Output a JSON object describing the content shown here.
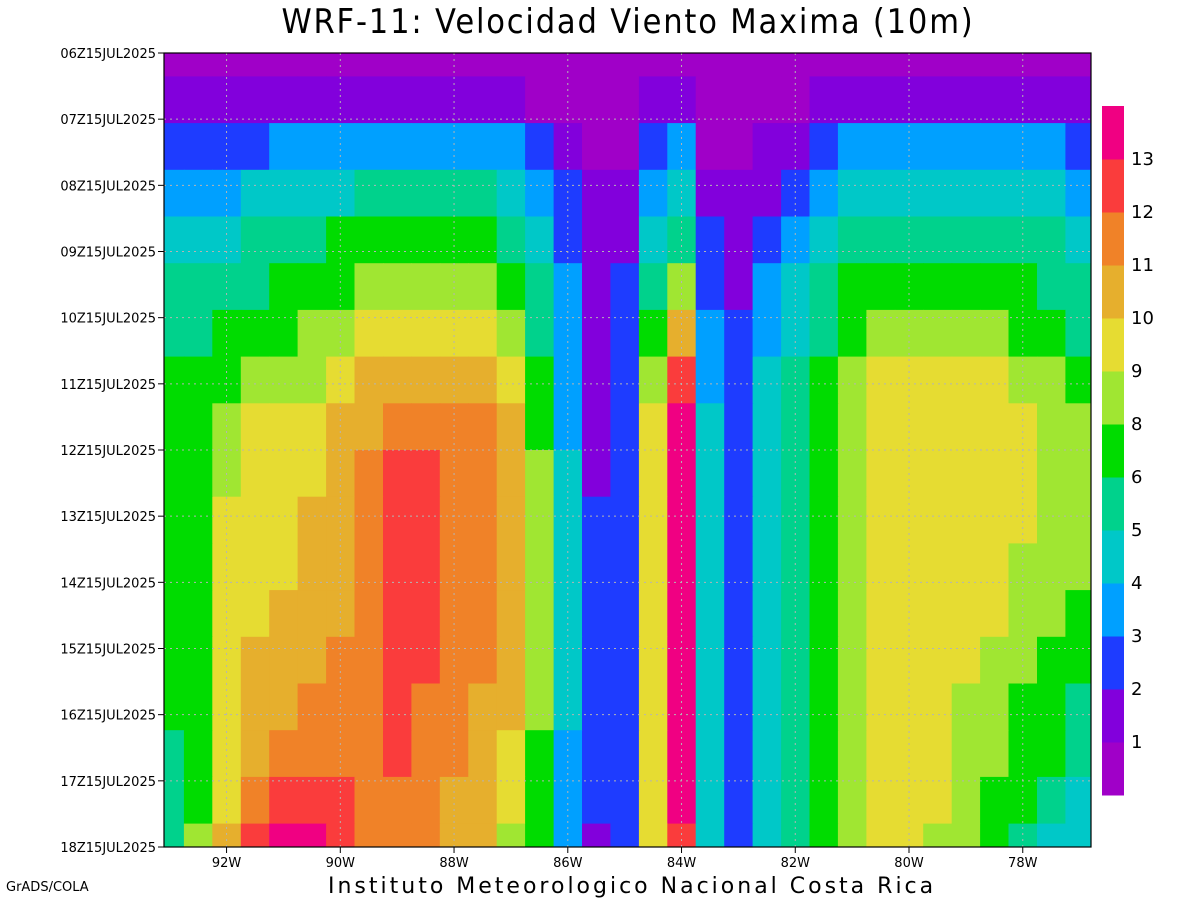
{
  "title": "WRF-11: Velocidad  Viento Maxima (10m)",
  "footer_credit": "Instituto Meteorologico Nacional Costa Rica",
  "software_label": "GrADS/COLA",
  "chart_data": {
    "type": "heatmap",
    "title": "WRF-11: Velocidad  Viento Maxima (10m)",
    "xlabel": "",
    "ylabel": "",
    "x_ticks": [
      "92W",
      "90W",
      "88W",
      "86W",
      "84W",
      "82W",
      "80W",
      "78W"
    ],
    "x_tick_values": [
      -92,
      -90,
      -88,
      -86,
      -84,
      -82,
      -80,
      -78
    ],
    "xlim": [
      -93.1,
      -76.8
    ],
    "y_ticks": [
      "06Z15JUL2025",
      "07Z15JUL2025",
      "08Z15JUL2025",
      "09Z15JUL2025",
      "10Z15JUL2025",
      "11Z15JUL2025",
      "12Z15JUL2025",
      "13Z15JUL2025",
      "14Z15JUL2025",
      "15Z15JUL2025",
      "16Z15JUL2025",
      "17Z15JUL2025",
      "18Z15JUL2025"
    ],
    "y_order": "top-to-bottom",
    "grid": true,
    "colorbar": {
      "placement": "right",
      "labels": [
        "1",
        "2",
        "3",
        "4",
        "5",
        "6",
        "8",
        "9",
        "10",
        "11",
        "12",
        "13"
      ],
      "colors": [
        "#a000c8",
        "#8200dc",
        "#1e3cff",
        "#00a0ff",
        "#00c8c8",
        "#00d28c",
        "#00dc00",
        "#a0e632",
        "#e6dc32",
        "#e6af2d",
        "#f08228",
        "#fa3c3c",
        "#f00082"
      ]
    },
    "longitudes": [
      -93.0,
      -92.5,
      -92.0,
      -91.5,
      -91.0,
      -90.5,
      -90.0,
      -89.5,
      -89.0,
      -88.5,
      -88.0,
      -87.5,
      -87.0,
      -86.5,
      -86.0,
      -85.5,
      -85.0,
      -84.5,
      -84.0,
      -83.5,
      -83.0,
      -82.5,
      -82.0,
      -81.5,
      -81.0,
      -80.5,
      -80.0,
      -79.5,
      -79.0,
      -78.5,
      -78.0,
      -77.5,
      -77.0
    ],
    "values": [
      [
        0,
        0,
        0,
        0,
        0,
        0,
        0,
        0,
        0,
        0,
        0,
        0,
        0,
        0,
        0,
        0,
        0,
        0,
        0,
        0,
        0,
        0,
        0,
        0,
        0,
        0,
        0,
        0,
        0,
        0,
        0,
        0,
        0
      ],
      [
        1,
        1,
        1,
        1,
        1,
        1,
        1,
        1,
        1,
        1,
        1,
        1,
        1,
        0,
        0,
        0,
        0,
        1,
        1,
        0,
        0,
        0,
        0,
        1,
        1,
        1,
        1,
        1,
        1,
        1,
        1,
        1,
        1
      ],
      [
        2,
        2,
        2,
        2,
        3,
        3,
        3,
        3,
        3,
        3,
        3,
        3,
        3,
        2,
        1,
        0,
        0,
        2,
        3,
        0,
        0,
        1,
        1,
        2,
        3,
        3,
        3,
        3,
        3,
        3,
        3,
        3,
        2
      ],
      [
        3,
        3,
        3,
        4,
        4,
        4,
        4,
        5,
        5,
        5,
        5,
        5,
        4,
        3,
        2,
        1,
        1,
        3,
        4,
        1,
        1,
        1,
        2,
        3,
        4,
        4,
        4,
        4,
        4,
        4,
        4,
        4,
        3
      ],
      [
        4,
        4,
        4,
        5,
        5,
        5,
        6,
        6,
        6,
        6,
        6,
        6,
        5,
        4,
        2,
        1,
        1,
        4,
        5,
        2,
        1,
        2,
        3,
        4,
        5,
        5,
        5,
        5,
        5,
        5,
        5,
        5,
        4
      ],
      [
        5,
        5,
        5,
        5,
        6,
        6,
        6,
        7,
        7,
        7,
        7,
        7,
        6,
        5,
        3,
        1,
        2,
        5,
        7,
        2,
        1,
        3,
        4,
        5,
        6,
        6,
        6,
        6,
        6,
        6,
        6,
        5,
        5
      ],
      [
        5,
        5,
        6,
        6,
        6,
        7,
        7,
        8,
        8,
        8,
        8,
        8,
        7,
        5,
        3,
        1,
        2,
        6,
        9,
        3,
        2,
        3,
        4,
        5,
        6,
        7,
        7,
        7,
        7,
        7,
        6,
        6,
        5
      ],
      [
        6,
        6,
        6,
        7,
        7,
        7,
        8,
        9,
        9,
        9,
        9,
        9,
        8,
        6,
        3,
        1,
        2,
        7,
        11,
        3,
        2,
        4,
        5,
        6,
        7,
        8,
        8,
        8,
        8,
        8,
        7,
        7,
        6
      ],
      [
        6,
        6,
        7,
        8,
        8,
        8,
        9,
        9,
        10,
        10,
        10,
        10,
        9,
        6,
        3,
        1,
        2,
        8,
        12,
        4,
        2,
        4,
        5,
        6,
        7,
        8,
        8,
        8,
        8,
        8,
        8,
        7,
        7
      ],
      [
        6,
        6,
        7,
        8,
        8,
        8,
        9,
        10,
        11,
        11,
        10,
        10,
        9,
        7,
        4,
        1,
        2,
        8,
        12,
        4,
        2,
        4,
        5,
        6,
        7,
        8,
        8,
        8,
        8,
        8,
        8,
        7,
        7
      ],
      [
        6,
        6,
        8,
        8,
        8,
        9,
        9,
        10,
        11,
        11,
        10,
        10,
        9,
        7,
        4,
        2,
        2,
        8,
        12,
        4,
        2,
        4,
        5,
        6,
        7,
        8,
        8,
        8,
        8,
        8,
        8,
        7,
        7
      ],
      [
        6,
        6,
        8,
        8,
        8,
        9,
        9,
        10,
        11,
        11,
        10,
        10,
        9,
        7,
        4,
        2,
        2,
        8,
        12,
        4,
        2,
        4,
        5,
        6,
        7,
        8,
        8,
        8,
        8,
        8,
        7,
        7,
        7
      ],
      [
        6,
        6,
        8,
        8,
        9,
        9,
        9,
        10,
        11,
        11,
        10,
        10,
        9,
        7,
        4,
        2,
        2,
        8,
        12,
        4,
        2,
        4,
        5,
        6,
        7,
        8,
        8,
        8,
        8,
        8,
        7,
        7,
        6
      ],
      [
        6,
        6,
        8,
        9,
        9,
        9,
        10,
        10,
        11,
        11,
        10,
        10,
        9,
        7,
        4,
        2,
        2,
        8,
        12,
        4,
        2,
        4,
        5,
        6,
        7,
        8,
        8,
        8,
        8,
        7,
        7,
        6,
        6
      ],
      [
        6,
        6,
        8,
        9,
        9,
        10,
        10,
        10,
        11,
        10,
        10,
        9,
        9,
        7,
        4,
        2,
        2,
        8,
        12,
        4,
        2,
        4,
        5,
        6,
        7,
        8,
        8,
        8,
        7,
        7,
        6,
        6,
        5
      ],
      [
        5,
        6,
        8,
        9,
        10,
        10,
        10,
        10,
        11,
        10,
        10,
        9,
        8,
        6,
        3,
        2,
        2,
        8,
        12,
        4,
        2,
        4,
        5,
        6,
        7,
        8,
        8,
        8,
        7,
        7,
        6,
        6,
        5
      ],
      [
        5,
        6,
        8,
        10,
        11,
        11,
        11,
        10,
        10,
        10,
        9,
        9,
        8,
        6,
        3,
        2,
        2,
        8,
        12,
        4,
        2,
        4,
        5,
        6,
        7,
        8,
        8,
        8,
        7,
        6,
        6,
        5,
        4
      ],
      [
        5,
        7,
        9,
        11,
        12,
        12,
        11,
        10,
        10,
        10,
        9,
        9,
        7,
        6,
        3,
        1,
        2,
        8,
        11,
        4,
        2,
        4,
        5,
        6,
        7,
        8,
        8,
        7,
        7,
        6,
        5,
        4,
        4
      ]
    ]
  }
}
